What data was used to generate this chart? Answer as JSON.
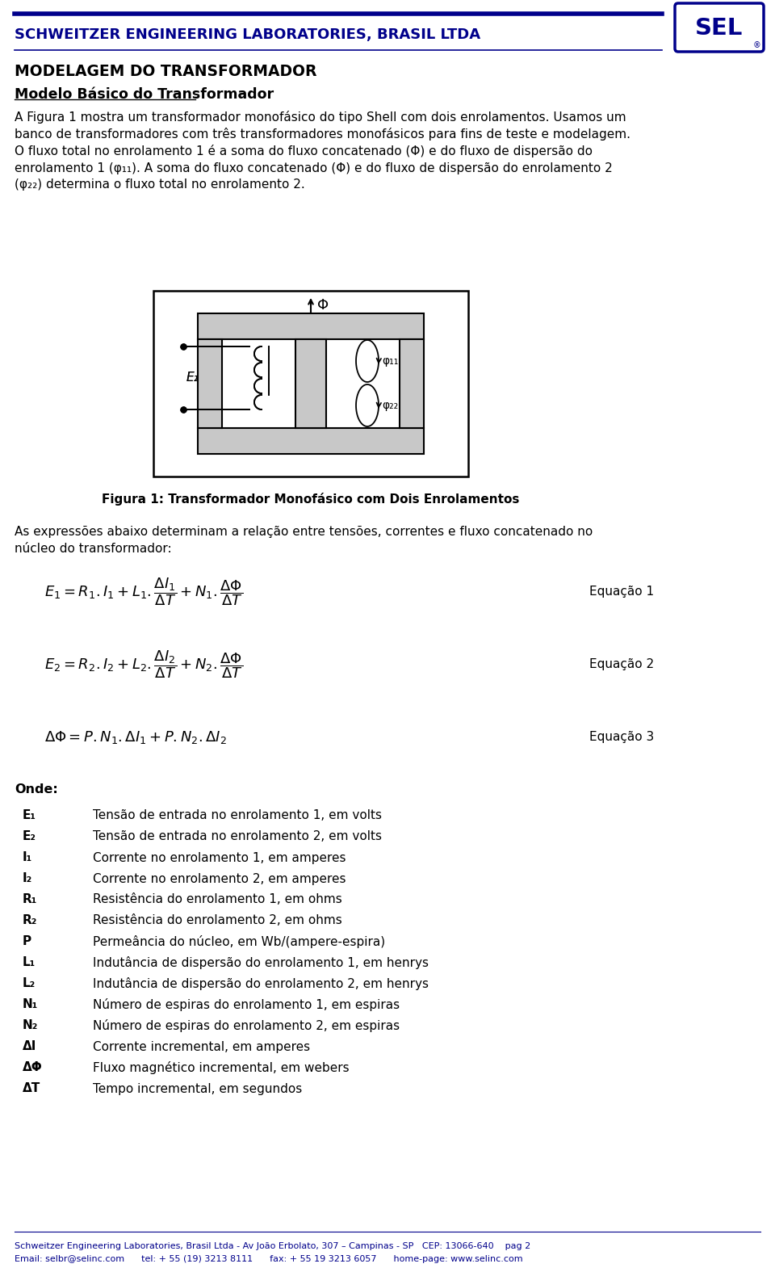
{
  "title_company": "SCHWEITZER ENGINEERING LABORATORIES, BRASIL LTDA",
  "title_main": "MODELAGEM DO TRANSFORMADOR",
  "title_sub": "Modelo Básico do Transformador",
  "body_lines": [
    "A Figura 1 mostra um transformador monofásico do tipo Shell com dois enrolamentos. Usamos um",
    "banco de transformadores com três transformadores monofásicos para fins de teste e modelagem.",
    "O fluxo total no enrolamento 1 é a soma do fluxo concatenado (Φ) e do fluxo de dispersão do",
    "enrolamento 1 (φ₁₁). A soma do fluxo concatenado (Φ) e do fluxo de dispersão do enrolamento 2",
    "(φ₂₂) determina o fluxo total no enrolamento 2."
  ],
  "fig_caption": "Figura 1: Transformador Monofásico com Dois Enrolamentos",
  "eq_intro1": "As expressões abaixo determinam a relação entre tensões, correntes e fluxo concatenado no",
  "eq_intro2": "núcleo do transformador:",
  "eq1_label": "Equação 1",
  "eq2_label": "Equação 2",
  "eq3_label": "Equação 3",
  "onde_title": "Onde:",
  "onde_items": [
    [
      "E₁",
      "Tensão de entrada no enrolamento 1, em volts"
    ],
    [
      "E₂",
      "Tensão de entrada no enrolamento 2, em volts"
    ],
    [
      "I₁",
      "Corrente no enrolamento 1, em amperes"
    ],
    [
      "I₂",
      "Corrente no enrolamento 2, em amperes"
    ],
    [
      "R₁",
      "Resistência do enrolamento 1, em ohms"
    ],
    [
      "R₂",
      "Resistência do enrolamento 2, em ohms"
    ],
    [
      "P",
      "Permeância do núcleo, em Wb/(ampere-espira)"
    ],
    [
      "L₁",
      "Indutância de dispersão do enrolamento 1, em henrys"
    ],
    [
      "L₂",
      "Indutância de dispersão do enrolamento 2, em henrys"
    ],
    [
      "N₁",
      "Número de espiras do enrolamento 1, em espiras"
    ],
    [
      "N₂",
      "Número de espiras do enrolamento 2, em espiras"
    ],
    [
      "ΔI",
      "Corrente incremental, em amperes"
    ],
    [
      "ΔΦ",
      "Fluxo magnético incremental, em webers"
    ],
    [
      "ΔT",
      "Tempo incremental, em segundos"
    ]
  ],
  "footer1": "Schweitzer Engineering Laboratories, Brasil Ltda - Av João Erbolato, 307 – Campinas - SP   CEP: 13066-640    pag 2",
  "footer2": "Email: selbr@selinc.com      tel: + 55 (19) 3213 8111      fax: + 55 19 3213 6057      home-page: www.selinc.com",
  "blue": "#00008B",
  "black": "#000000",
  "lightgray": "#C8C8C8",
  "white": "#FFFFFF"
}
